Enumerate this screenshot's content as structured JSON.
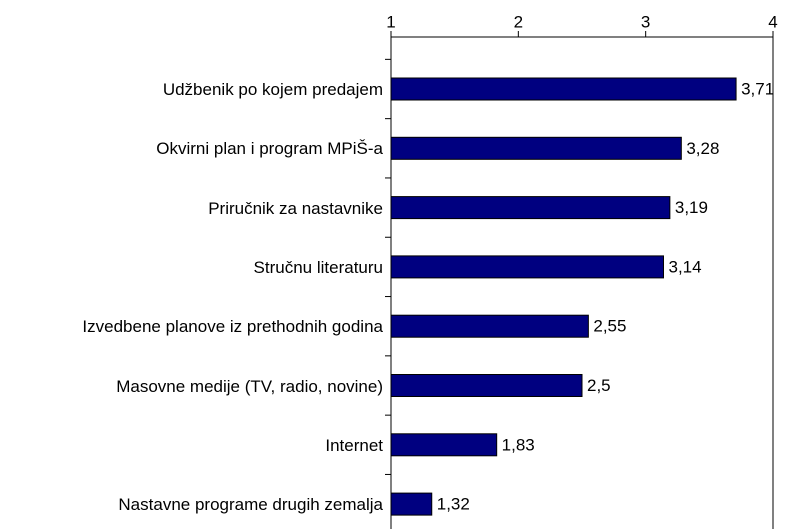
{
  "chart_data": {
    "type": "bar",
    "orientation": "horizontal",
    "categories": [
      "Udžbenik po kojem predajem",
      "Okvirni plan i program MPiŠ-a",
      "Priručnik za nastavnike",
      "Stručnu literaturu",
      "Izvedbene planove iz prethodnih godina",
      "Masovne medije (TV, radio, novine)",
      "Internet",
      "Nastavne programe drugih zemalja"
    ],
    "values": [
      3.71,
      3.28,
      3.19,
      3.14,
      2.55,
      2.5,
      1.83,
      1.32
    ],
    "value_labels": [
      "3,71",
      "3,28",
      "3,19",
      "3,14",
      "2,55",
      "2,5",
      "1,83",
      "1,32"
    ],
    "color": "#000080",
    "xlim": [
      1,
      4
    ],
    "xticks": [
      1,
      2,
      3,
      4
    ],
    "grid": false
  }
}
